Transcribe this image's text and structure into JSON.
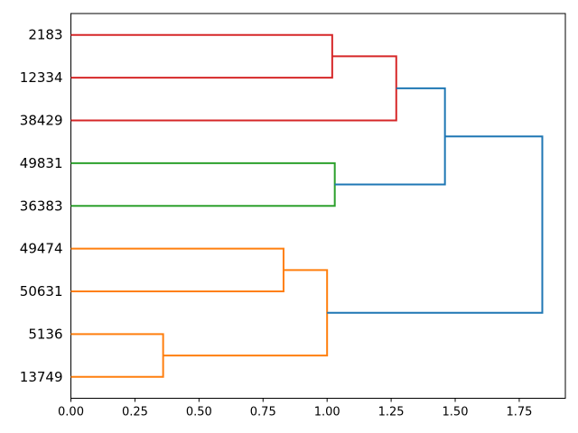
{
  "figure": {
    "background": "#ffffff",
    "axis_color": "#000000"
  },
  "chart_data": {
    "type": "dendrogram",
    "orientation": "right",
    "title": "",
    "xlabel": "",
    "ylabel": "",
    "grid": false,
    "xlim": [
      0,
      1.93
    ],
    "ylim": [
      0,
      90
    ],
    "line_width": 2,
    "colors": {
      "cluster_red": "#d62728",
      "cluster_green": "#2ca02c",
      "cluster_orange": "#ff7f0e",
      "above_threshold_blue": "#1f77b4",
      "axis": "#000000"
    },
    "leaves": [
      {
        "label": "2183",
        "pos": 85
      },
      {
        "label": "12334",
        "pos": 75
      },
      {
        "label": "38429",
        "pos": 65
      },
      {
        "label": "49831",
        "pos": 55
      },
      {
        "label": "36383",
        "pos": 45
      },
      {
        "label": "49474",
        "pos": 35
      },
      {
        "label": "50631",
        "pos": 25
      },
      {
        "label": "5136",
        "pos": 15
      },
      {
        "label": "13749",
        "pos": 5
      }
    ],
    "links": [
      {
        "name": "merge-5136-13749",
        "color": "#ff7f0e",
        "x": [
          0,
          0.36,
          0.36,
          0
        ],
        "y": [
          15,
          15,
          5,
          5
        ]
      },
      {
        "name": "merge-49474-50631",
        "color": "#ff7f0e",
        "x": [
          0,
          0.83,
          0.83,
          0
        ],
        "y": [
          35,
          35,
          25,
          25
        ]
      },
      {
        "name": "merge-orange-root",
        "color": "#ff7f0e",
        "x": [
          0.83,
          1.0,
          1.0,
          0.36
        ],
        "y": [
          30,
          30,
          10,
          10
        ]
      },
      {
        "name": "merge-2183-12334",
        "color": "#d62728",
        "x": [
          0,
          1.02,
          1.02,
          0
        ],
        "y": [
          85,
          85,
          75,
          75
        ]
      },
      {
        "name": "merge-red-38429",
        "color": "#d62728",
        "x": [
          1.02,
          1.27,
          1.27,
          0
        ],
        "y": [
          80,
          80,
          65,
          65
        ]
      },
      {
        "name": "merge-49831-36383",
        "color": "#2ca02c",
        "x": [
          0,
          1.03,
          1.03,
          0
        ],
        "y": [
          55,
          55,
          45,
          45
        ]
      },
      {
        "name": "merge-red-green",
        "color": "#1f77b4",
        "x": [
          1.27,
          1.46,
          1.46,
          1.03
        ],
        "y": [
          72.5,
          72.5,
          50,
          50
        ]
      },
      {
        "name": "merge-root",
        "color": "#1f77b4",
        "x": [
          1.46,
          1.84,
          1.84,
          1.0
        ],
        "y": [
          61.25,
          61.25,
          20,
          20
        ]
      }
    ],
    "x_ticks": [
      {
        "value": 0.0,
        "label": "0.00"
      },
      {
        "value": 0.25,
        "label": "0.25"
      },
      {
        "value": 0.5,
        "label": "0.50"
      },
      {
        "value": 0.75,
        "label": "0.75"
      },
      {
        "value": 1.0,
        "label": "1.00"
      },
      {
        "value": 1.25,
        "label": "1.25"
      },
      {
        "value": 1.5,
        "label": "1.50"
      },
      {
        "value": 1.75,
        "label": "1.75"
      }
    ]
  }
}
